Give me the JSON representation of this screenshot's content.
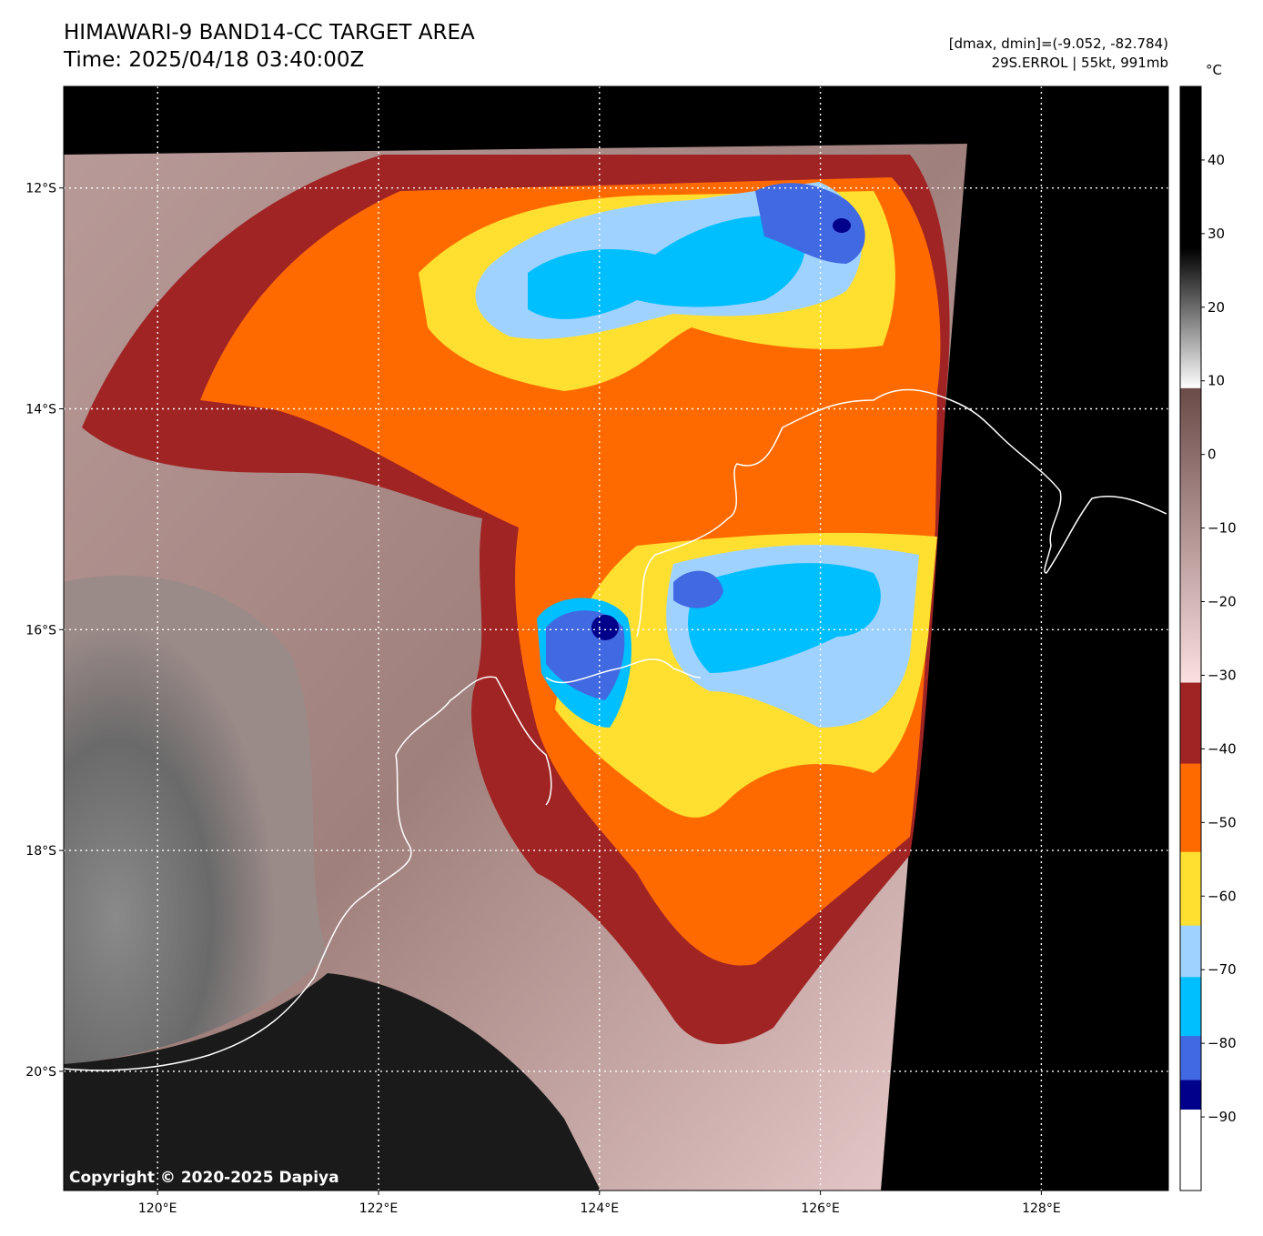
{
  "header": {
    "title_line1": "HIMAWARI-9 BAND14-CC TARGET AREA",
    "title_line2": "Time: 2025/04/18 03:40:00Z",
    "range_text": "[dmax, dmin]=(-9.052, -82.784)",
    "storm_text": "29S.ERROL | 55kt, 991mb"
  },
  "copyright": "Copyright © 2020-2025 Dapiya",
  "chart_data": {
    "type": "heatmap",
    "title": "HIMAWARI-9 BAND14-CC TARGET AREA",
    "xlabel": "",
    "ylabel": "",
    "lon_ticks": [
      120,
      122,
      124,
      126,
      128
    ],
    "lon_tick_labels": [
      "120°E",
      "122°E",
      "124°E",
      "126°E",
      "128°E"
    ],
    "lat_ticks": [
      -12,
      -14,
      -16,
      -18,
      -20
    ],
    "lat_tick_labels": [
      "12°S",
      "14°S",
      "16°S",
      "18°S",
      "20°S"
    ],
    "xlim": [
      119.15,
      129.15
    ],
    "ylim": [
      -21.08,
      -11.08
    ],
    "grid": true,
    "colorbar": {
      "unit": "°C",
      "range": [
        -100,
        50
      ],
      "ticks": [
        40,
        30,
        20,
        10,
        0,
        -10,
        -20,
        -30,
        -40,
        -50,
        -60,
        -70,
        -80,
        -90
      ],
      "tick_labels": [
        "40",
        "30",
        "20",
        "10",
        "0",
        "−10",
        "−20",
        "−30",
        "−40",
        "−50",
        "−60",
        "−70",
        "−80",
        "−90"
      ],
      "segments": [
        {
          "from": 28,
          "to": 50,
          "color": "#000000"
        },
        {
          "from": 9,
          "to": 28,
          "color_top": "#000000",
          "color_bottom": "#ffffff"
        },
        {
          "from": -31,
          "to": 9,
          "color_top": "#6b4b48",
          "color_bottom": "#fbe0e0"
        },
        {
          "from": -42,
          "to": -31,
          "color": "#a02424"
        },
        {
          "from": -54,
          "to": -42,
          "color": "#ff6a00"
        },
        {
          "from": -64,
          "to": -54,
          "color": "#ffe030"
        },
        {
          "from": -71,
          "to": -64,
          "color": "#a0d2ff"
        },
        {
          "from": -79,
          "to": -71,
          "color": "#00bfff"
        },
        {
          "from": -85,
          "to": -79,
          "color": "#4169e1"
        },
        {
          "from": -89,
          "to": -85,
          "color": "#00008b"
        },
        {
          "from": -100,
          "to": -89,
          "color": "#ffffff"
        }
      ]
    }
  }
}
